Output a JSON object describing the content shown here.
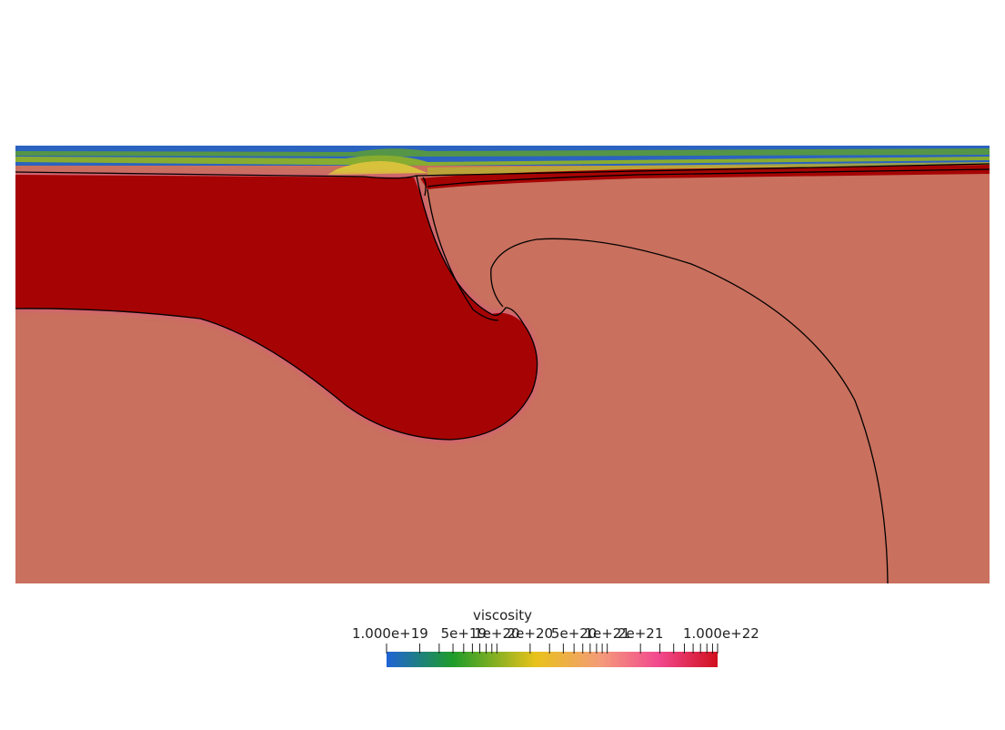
{
  "colorbar": {
    "title": "viscosity",
    "min_label": "1.000e+19",
    "max_label": "1.000e+22",
    "tick_labels": [
      "5e+19",
      "1e+20",
      "2e+20",
      "5e+20",
      "1e+21",
      "2e+21"
    ],
    "scale": "log",
    "range": [
      1e+19,
      1e+22
    ],
    "colors": [
      "#1f63d6",
      "#1e9c2a",
      "#e8c21a",
      "#f49a7a",
      "#f2498f",
      "#d0101e"
    ]
  },
  "colors": {
    "lithosphere": "#a60404",
    "mantle": "#c9705e",
    "top_blue": "#1e56c4",
    "top_green": "#7da828",
    "top_yellow": "#dcc03c",
    "halo": "#e0508a",
    "contour": "#000000"
  }
}
